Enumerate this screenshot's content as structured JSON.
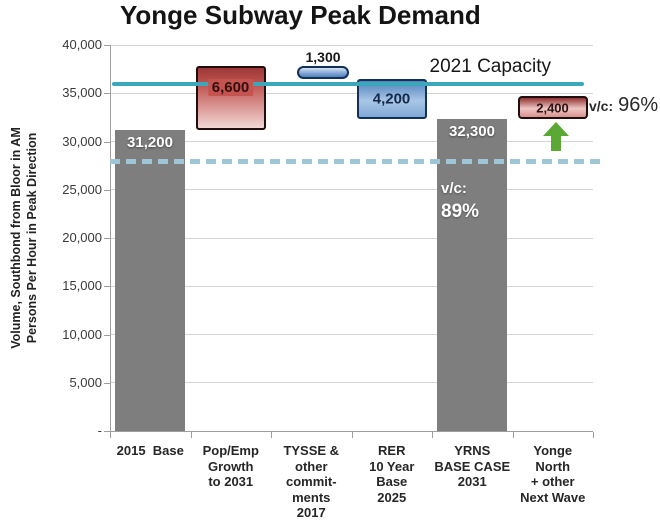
{
  "chart_data": {
    "type": "bar",
    "subtype": "waterfall",
    "title": "Yonge Subway Peak Demand",
    "ylabel_lines": [
      "Volume, Southbond from Bloor in AM",
      "Persons Per Hour in Peak Direction"
    ],
    "ylim": [
      0,
      40000
    ],
    "ytick_step": 5000,
    "ytick_labels": [
      "-",
      "5,000",
      "10,000",
      "15,000",
      "20,000",
      "25,000",
      "30,000",
      "35,000",
      "40,000"
    ],
    "grid": true,
    "columns": [
      {
        "name": "2015-base",
        "label_lines": [
          "2015  Base"
        ],
        "bar": {
          "start": 0,
          "end": 31200,
          "style": "gray",
          "value_label": "31,200",
          "label_pos": "on-gray"
        }
      },
      {
        "name": "pop-emp-growth-to-2031",
        "label_lines": [
          "Pop/Emp",
          "Growth",
          "to 2031"
        ],
        "bar": {
          "start": 31200,
          "end": 37800,
          "style": "red",
          "value_label": "6,600",
          "label_pos": "on-red"
        }
      },
      {
        "name": "tysse-other-commitments-2017",
        "label_lines": [
          "TYSSE &",
          "other",
          "commit-",
          "ments",
          "2017"
        ],
        "bar": {
          "start": 36500,
          "end": 37800,
          "style": "blue-pill",
          "value_label": "1,300",
          "label_pos": "above"
        }
      },
      {
        "name": "rer-10-year-base-2025",
        "label_lines": [
          "RER",
          "10 Year",
          "Base",
          "2025"
        ],
        "bar": {
          "start": 32300,
          "end": 36500,
          "style": "blue",
          "value_label": "4,200",
          "label_pos": "on-blue"
        }
      },
      {
        "name": "yrns-base-case-2031",
        "label_lines": [
          "YRNS",
          "BASE CASE",
          "2031"
        ],
        "bar": {
          "start": 0,
          "end": 32300,
          "style": "gray",
          "value_label": "32,300",
          "label_pos": "on-gray",
          "extra_label_lines": [
            "v/c:",
            "89%"
          ]
        }
      },
      {
        "name": "yonge-north-other-next-wave",
        "label_lines": [
          "Yonge",
          "North",
          "+ other",
          "Next Wave"
        ],
        "bar": {
          "start": 32300,
          "end": 34700,
          "style": "red-small",
          "value_label": "2,400",
          "label_pos": "on-red-small",
          "annotation": {
            "prefix": "v/c:",
            "value": "96%"
          },
          "arrow": "green-up"
        }
      }
    ],
    "capacity_line": {
      "value": 36000,
      "label": "2021 Capacity",
      "color": "#3aa7bb"
    },
    "dashed_line": {
      "value": 28000,
      "color": "#9fc6d4"
    },
    "colors": {
      "gray_bar": "#7e7e7e",
      "red_bar_top": "#9c3836",
      "red_bar_bottom": "#f1d8d6",
      "blue_bar": "#4f81bd",
      "capacity_line": "#3aa7bb",
      "dashed_line": "#9fc6d4",
      "arrow_green": "#5ca834"
    }
  }
}
